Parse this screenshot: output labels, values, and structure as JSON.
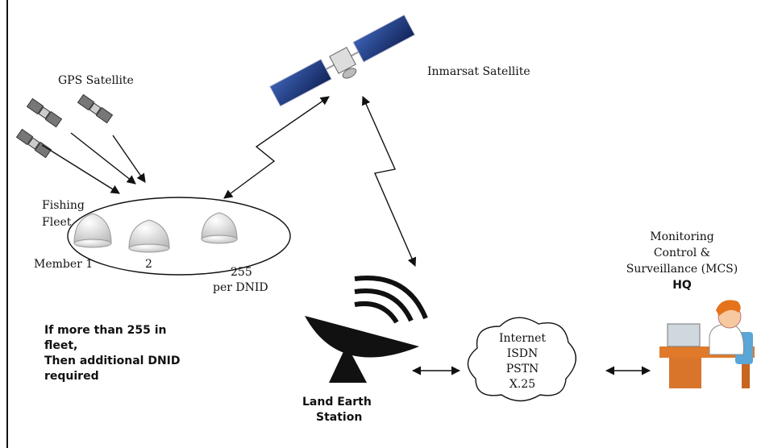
{
  "gps_satellite": {
    "label": "GPS Satellite"
  },
  "inmarsat_satellite": {
    "label": "Inmarsat Satellite"
  },
  "fishing_fleet": {
    "label_lines": [
      "Fishing",
      "Fleet"
    ],
    "members": [
      "Member 1",
      "2",
      "255"
    ],
    "per_dnid": "per DNID"
  },
  "note": {
    "lines": [
      "If more than 255 in",
      "fleet,",
      "Then additional DNID",
      "required"
    ]
  },
  "land_earth_station": {
    "label_lines": [
      "Land Earth",
      "Station"
    ]
  },
  "network": {
    "lines": [
      "Internet",
      "ISDN",
      "PSTN",
      "X.25"
    ]
  },
  "mcs": {
    "lines": [
      "Monitoring",
      "Control &",
      "Surveillance (MCS)",
      "HQ"
    ]
  }
}
